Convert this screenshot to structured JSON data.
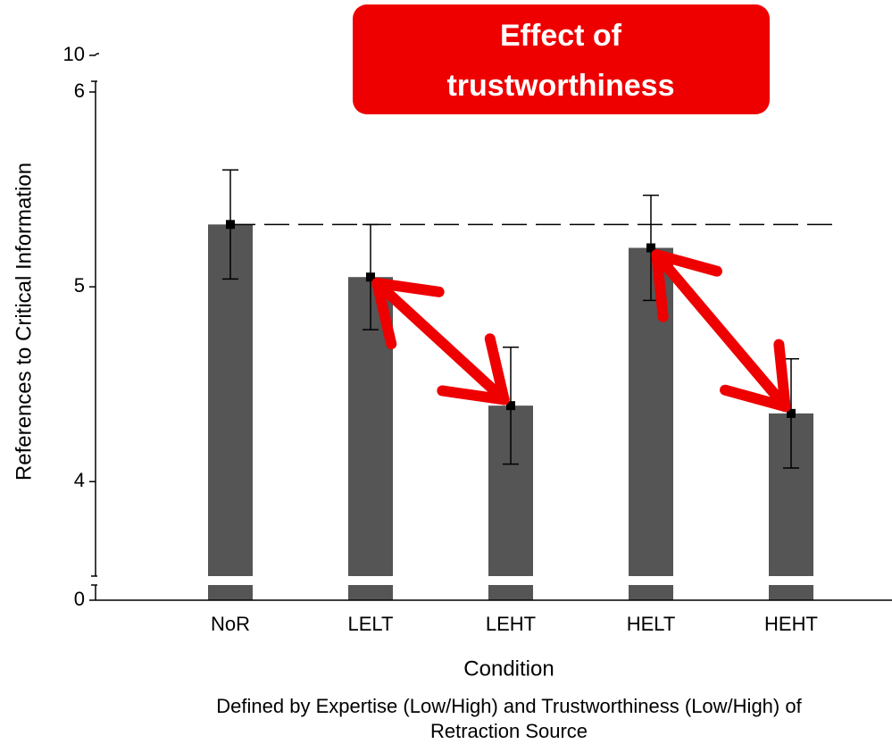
{
  "chart_data": {
    "type": "bar",
    "y_label": "References to Critical Information",
    "x_label": "Condition",
    "x_label_note": [
      "Defined by Expertise (Low/High) and Trustworthiness (Low/High) of",
      "Retraction Source"
    ],
    "annotation": [
      "Effect of",
      "trustworthiness"
    ],
    "categories": [
      "NoR",
      "LELT",
      "LEHT",
      "HELT",
      "HEHT"
    ],
    "values": [
      5.32,
      5.05,
      4.39,
      5.2,
      4.35
    ],
    "errors": [
      0.28,
      0.27,
      0.3,
      0.27,
      0.28
    ],
    "color": "#555555",
    "annotation_color": "#ee0000",
    "ylim": [
      3.515,
      6
    ],
    "yticks": [
      0,
      4,
      5,
      6,
      10
    ],
    "broken_axis": true
  }
}
